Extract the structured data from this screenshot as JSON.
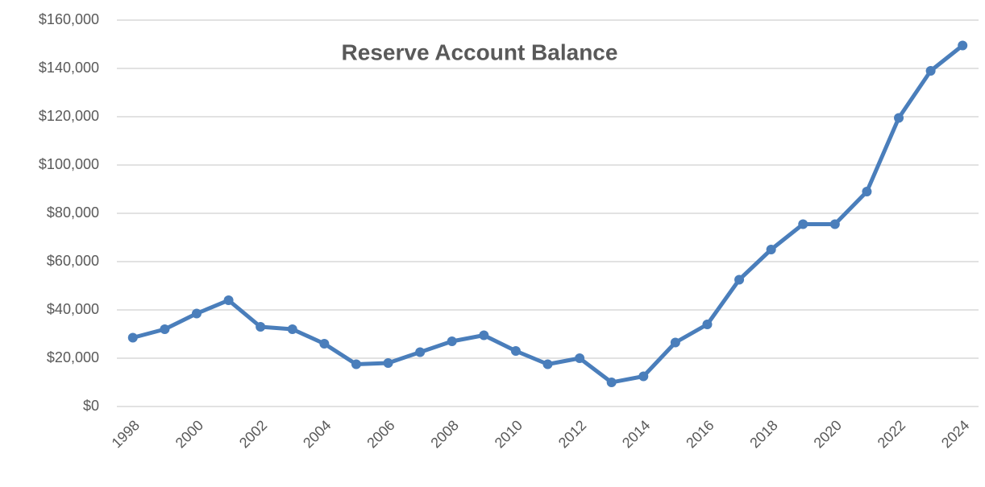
{
  "chart_data": {
    "type": "line",
    "title": "Reserve Account  Balance",
    "x": [
      1998,
      1999,
      2000,
      2001,
      2002,
      2003,
      2004,
      2005,
      2006,
      2007,
      2008,
      2009,
      2010,
      2011,
      2012,
      2013,
      2014,
      2015,
      2016,
      2017,
      2018,
      2019,
      2020,
      2021,
      2022,
      2023,
      2024
    ],
    "series": [
      {
        "name": "Reserve Account Balance",
        "color": "#4a7ebb",
        "values": [
          28500,
          32000,
          38500,
          44000,
          33000,
          32000,
          26000,
          17500,
          18000,
          22500,
          27000,
          29500,
          23000,
          17500,
          20000,
          10000,
          12500,
          26500,
          34000,
          52500,
          65000,
          75500,
          75500,
          89000,
          119500,
          139000,
          149500
        ]
      }
    ],
    "xlim": [
      1997.5,
      2024.5
    ],
    "xticks": [
      1998,
      2000,
      2002,
      2004,
      2006,
      2008,
      2010,
      2012,
      2014,
      2016,
      2018,
      2020,
      2022,
      2024
    ],
    "ylim": [
      0,
      160000
    ],
    "yticks": [
      {
        "value": 0,
        "label": "$0"
      },
      {
        "value": 20000,
        "label": "$20,000"
      },
      {
        "value": 40000,
        "label": "$40,000"
      },
      {
        "value": 60000,
        "label": "$60,000"
      },
      {
        "value": 80000,
        "label": "$80,000"
      },
      {
        "value": 100000,
        "label": "$100,000"
      },
      {
        "value": 120000,
        "label": "$120,000"
      },
      {
        "value": 140000,
        "label": "$140,000"
      },
      {
        "value": 160000,
        "label": "$160,000"
      }
    ],
    "grid": true
  }
}
